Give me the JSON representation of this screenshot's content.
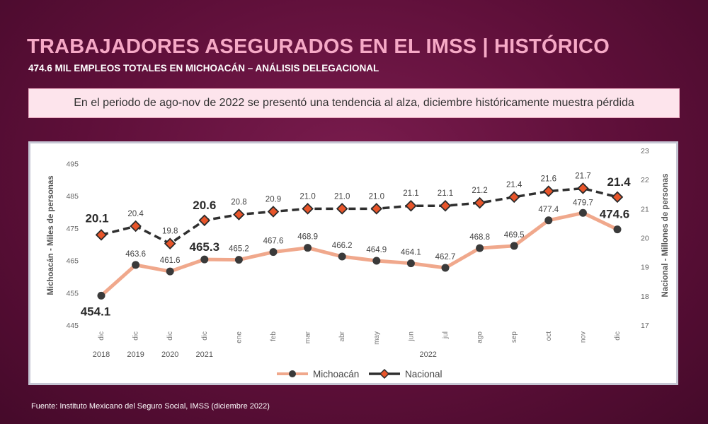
{
  "header": {
    "title": "TRABAJADORES ASEGURADOS EN EL IMSS | HISTÓRICO",
    "subtitle": "474.6 MIL EMPLEOS TOTALES EN MICHOACÁN – ANÁLISIS DELEGACIONAL"
  },
  "banner": {
    "text": "En el periodo de ago-nov de 2022 se presentó una tendencia al alza, diciembre históricamente muestra pérdida"
  },
  "source": "Fuente: Instituto Mexicano del Seguro Social, IMSS (diciembre 2022)",
  "colors": {
    "title": "#f6a9c6",
    "michoacan_line": "#f0a88c",
    "nacional_line": "#2f2f2f",
    "nacional_marker": "#e8552a",
    "michoacan_marker": "#3a3a3a"
  },
  "chart_data": {
    "type": "line",
    "title": "",
    "categories": [
      "dic",
      "dic",
      "dic",
      "dic",
      "ene",
      "feb",
      "mar",
      "abr",
      "may",
      "jun",
      "jul",
      "ago",
      "sep",
      "oct",
      "nov",
      "dic"
    ],
    "year_labels": [
      {
        "label": "2018",
        "index": 0
      },
      {
        "label": "2019",
        "index": 1
      },
      {
        "label": "2020",
        "index": 2
      },
      {
        "label": "2021",
        "index": 3
      },
      {
        "label": "2022",
        "index": 9.5
      }
    ],
    "y_left": {
      "label": "Michoacán - Miles de personas",
      "ticks": [
        445,
        455,
        465,
        475,
        485,
        495
      ],
      "range": [
        445,
        499
      ]
    },
    "y_right": {
      "label": "Nacional - Millones de personas",
      "ticks": [
        17,
        18,
        19,
        20,
        21,
        22,
        23
      ],
      "range": [
        17,
        23
      ]
    },
    "series": [
      {
        "name": "Michoacán",
        "axis": "left",
        "values": [
          454.1,
          463.6,
          461.6,
          465.3,
          465.2,
          467.6,
          468.9,
          466.2,
          464.9,
          464.1,
          462.7,
          468.8,
          469.5,
          477.4,
          479.7,
          474.6
        ],
        "labels": [
          "454.1",
          "463.6",
          "461.6",
          "465.3",
          "465.2",
          "467.6",
          "468.9",
          "466.2",
          "464.9",
          "464.1",
          "462.7",
          "468.8",
          "469.5",
          "477.4",
          "479.7",
          "474.6"
        ]
      },
      {
        "name": "Nacional",
        "axis": "right",
        "values": [
          20.1,
          20.4,
          19.8,
          20.6,
          20.8,
          20.9,
          21.0,
          21.0,
          21.0,
          21.1,
          21.1,
          21.2,
          21.4,
          21.6,
          21.7,
          21.4
        ],
        "labels": [
          "20.1",
          "20.4",
          "19.8",
          "20.6",
          "20.8",
          "20.9",
          "21.0",
          "21.0",
          "21.0",
          "21.1",
          "21.1",
          "21.2",
          "21.4",
          "21.6",
          "21.7",
          "21.4"
        ]
      }
    ],
    "legend": {
      "position": "bottom"
    },
    "grid": false
  }
}
